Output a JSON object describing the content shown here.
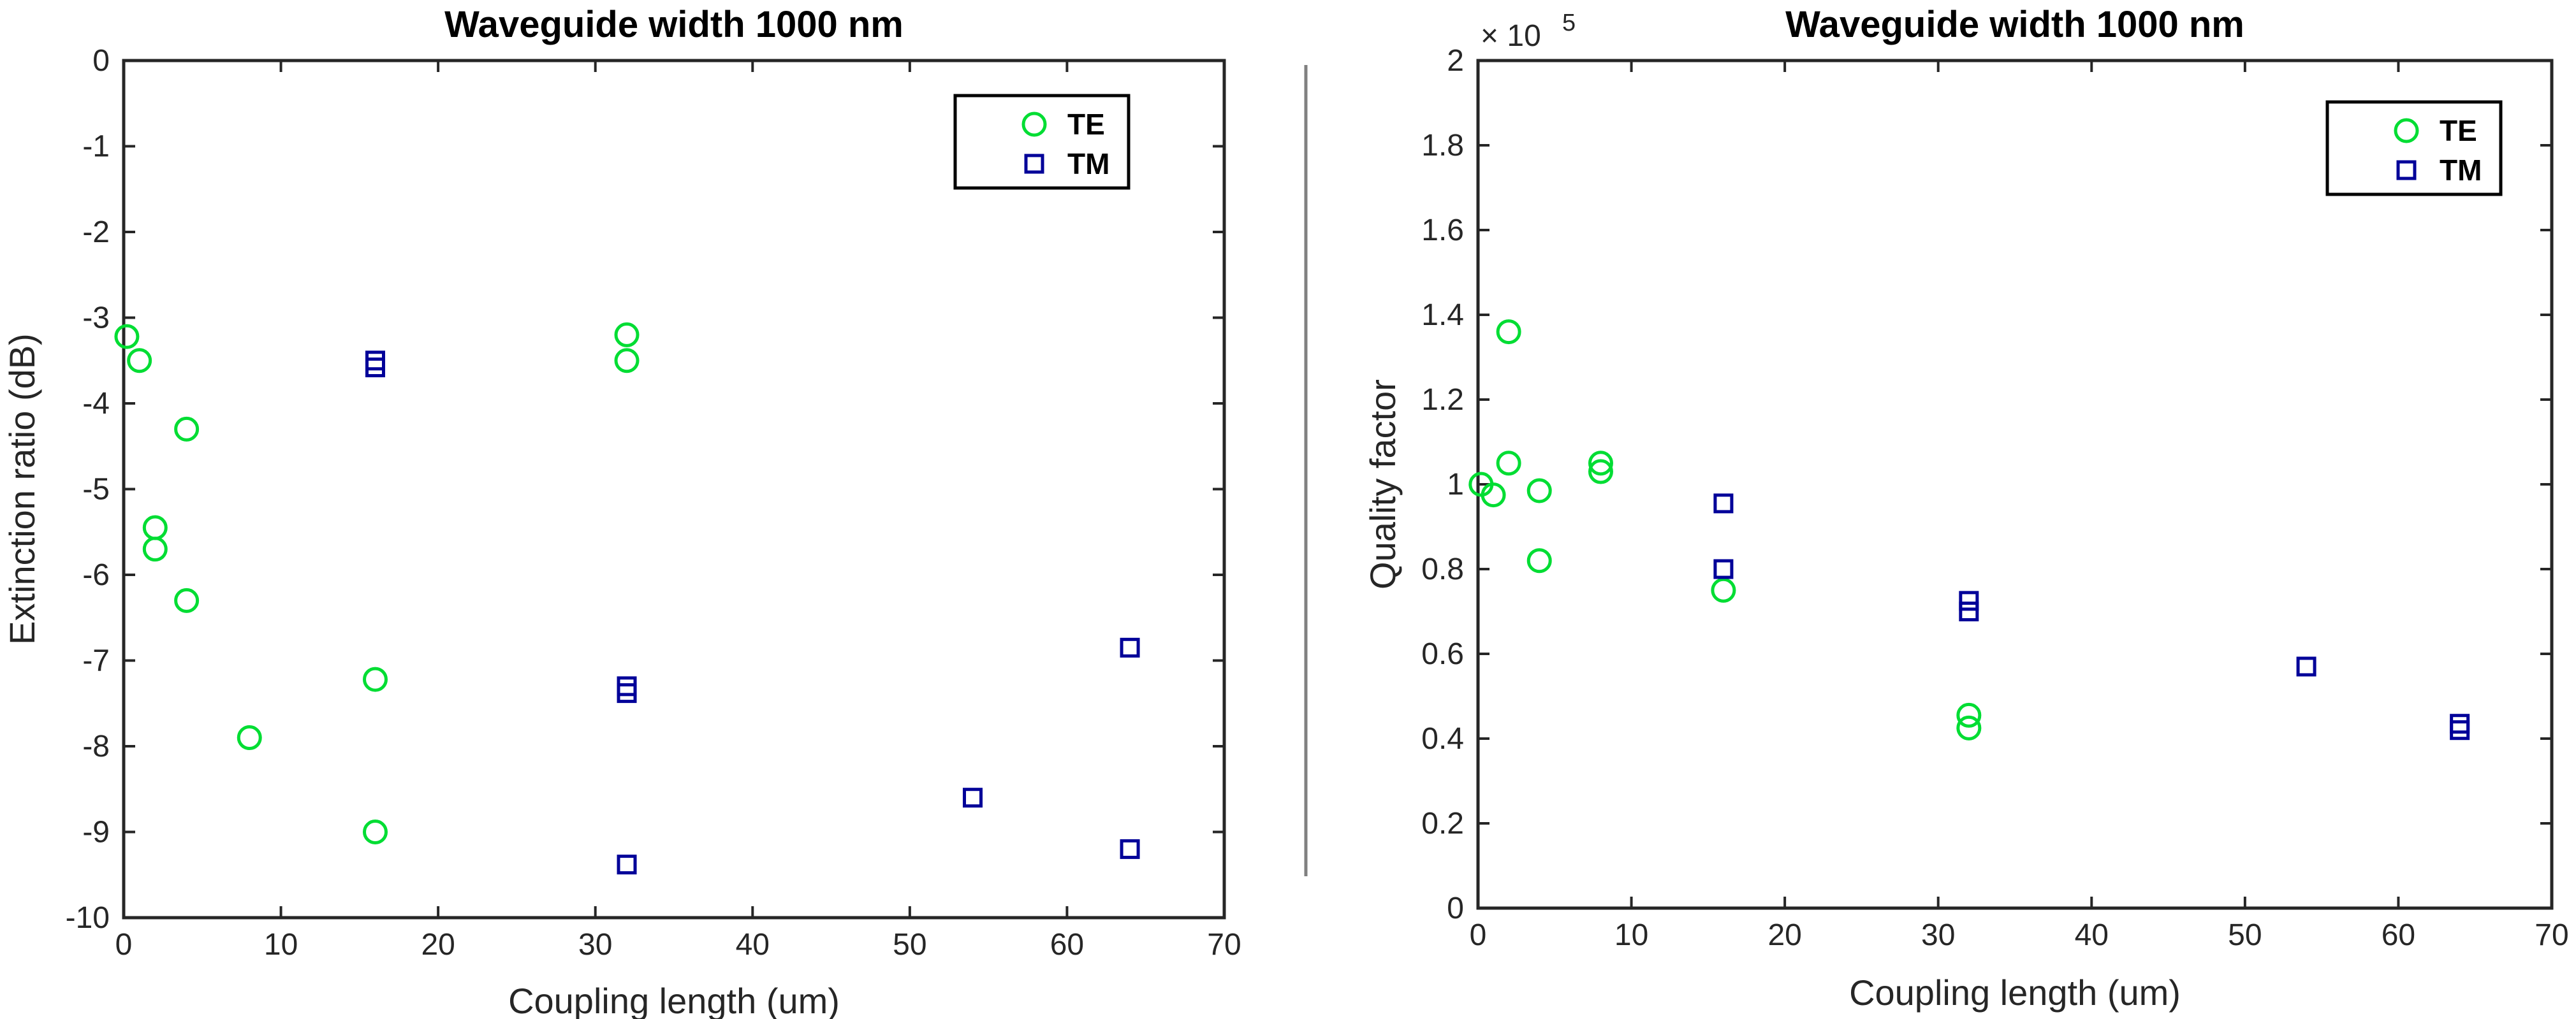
{
  "chart_data": [
    {
      "type": "scatter",
      "title": "Waveguide width  1000 nm",
      "xlabel": "Coupling length (um)",
      "ylabel": "Extinction ratio (dB)",
      "xlim": [
        0,
        70
      ],
      "ylim": [
        -10,
        0
      ],
      "xticks": [
        0,
        10,
        20,
        30,
        40,
        50,
        60,
        70
      ],
      "yticks": [
        0,
        -1,
        -2,
        -3,
        -4,
        -5,
        -6,
        -7,
        -8,
        -9,
        -10
      ],
      "xtick_labels": [
        "0",
        "10",
        "20",
        "30",
        "40",
        "50",
        "60",
        "70"
      ],
      "ytick_labels": [
        "0",
        "-1",
        "-2",
        "-3",
        "-4",
        "-5",
        "-6",
        "-7",
        "-8",
        "-9",
        "-10"
      ],
      "legend_position": "top-right",
      "series": [
        {
          "name": "TE",
          "marker": "circle",
          "color": "#00dd33",
          "x": [
            0.2,
            1,
            2,
            2,
            4,
            4,
            8,
            16,
            16,
            32,
            32
          ],
          "y": [
            -3.22,
            -3.5,
            -5.45,
            -5.7,
            -4.3,
            -6.3,
            -7.9,
            -7.22,
            -9.0,
            -3.2,
            -3.5
          ]
        },
        {
          "name": "TM",
          "marker": "square",
          "color": "#000099",
          "x": [
            16,
            16,
            32,
            32,
            32,
            54,
            64,
            64
          ],
          "y": [
            -3.5,
            -3.58,
            -7.3,
            -7.38,
            -9.38,
            -8.6,
            -6.85,
            -9.2
          ]
        }
      ]
    },
    {
      "type": "scatter",
      "title": "Waveguide width  1000 nm",
      "xlabel": "Coupling length (um)",
      "ylabel": "Quality factor",
      "exponent_prefix": "× 10",
      "exponent_power": "5",
      "xlim": [
        0,
        70
      ],
      "ylim": [
        0,
        2
      ],
      "xticks": [
        0,
        10,
        20,
        30,
        40,
        50,
        60,
        70
      ],
      "yticks": [
        0,
        0.2,
        0.4,
        0.6,
        0.8,
        1,
        1.2,
        1.4,
        1.6,
        1.8,
        2
      ],
      "xtick_labels": [
        "0",
        "10",
        "20",
        "30",
        "40",
        "50",
        "60",
        "70"
      ],
      "ytick_labels": [
        "0",
        "0.2",
        "0.4",
        "0.6",
        "0.8",
        "1",
        "1.2",
        "1.4",
        "1.6",
        "1.8",
        "2"
      ],
      "legend_position": "top-right",
      "series": [
        {
          "name": "TE",
          "marker": "circle",
          "color": "#00dd33",
          "x": [
            0.2,
            1,
            2,
            2,
            4,
            4,
            8,
            8,
            16,
            32,
            32
          ],
          "y": [
            1.0,
            0.975,
            1.36,
            1.05,
            0.985,
            0.82,
            1.05,
            1.03,
            0.75,
            0.455,
            0.425
          ]
        },
        {
          "name": "TM",
          "marker": "square",
          "color": "#000099",
          "x": [
            16,
            16,
            32,
            32,
            54,
            64,
            64
          ],
          "y": [
            0.955,
            0.8,
            0.725,
            0.7,
            0.57,
            0.435,
            0.42
          ]
        }
      ]
    }
  ]
}
